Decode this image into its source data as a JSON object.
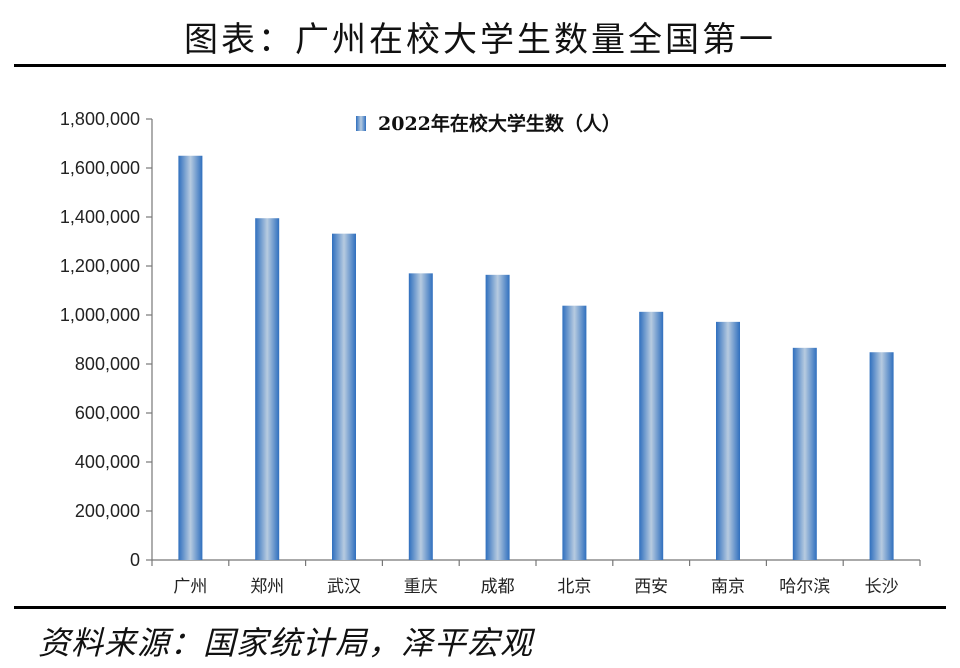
{
  "page": {
    "title": "图表：广州在校大学生数量全国第一",
    "source": "资料来源：国家统计局，泽平宏观"
  },
  "colors": {
    "bar_edge": "#2f6fbe",
    "bar_mid": "#b7cbe0",
    "axis": "#777777"
  },
  "chart_data": {
    "type": "bar",
    "categories": [
      "广州",
      "郑州",
      "武汉",
      "重庆",
      "成都",
      "北京",
      "西安",
      "南京",
      "哈尔滨",
      "长沙"
    ],
    "series": [
      {
        "name": "2022年在校大学生数（人）",
        "values": [
          1650000,
          1395000,
          1332000,
          1170000,
          1164000,
          1038000,
          1013000,
          972000,
          866000,
          848000
        ]
      }
    ],
    "yticks": [
      "0",
      "200,000",
      "400,000",
      "600,000",
      "800,000",
      "1,000,000",
      "1,200,000",
      "1,400,000",
      "1,600,000",
      "1,800,000"
    ],
    "ylim": [
      0,
      1800000
    ],
    "grid": false,
    "legend_position": "top-center"
  }
}
